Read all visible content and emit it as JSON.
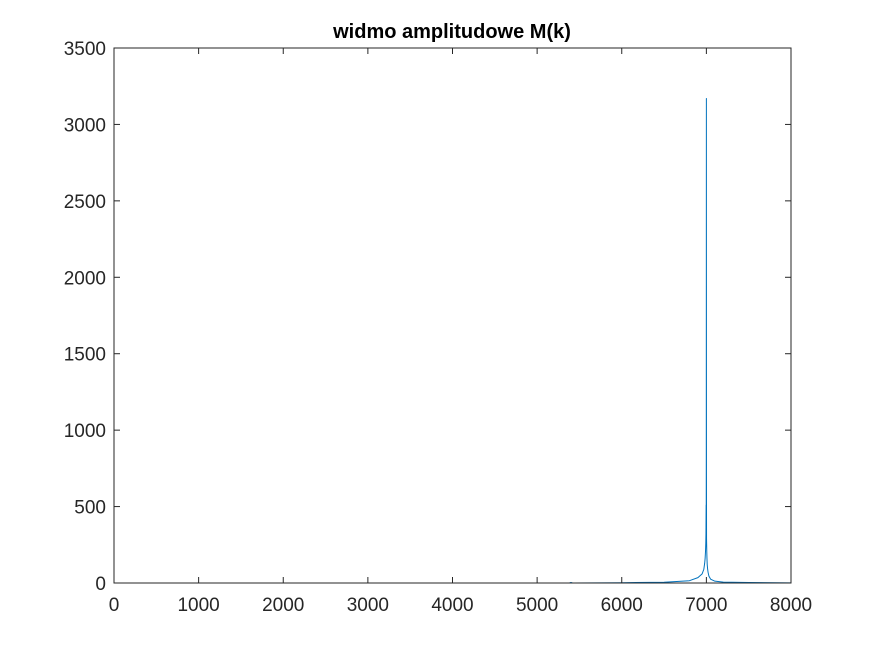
{
  "chart_data": {
    "type": "line",
    "title": "widmo amplitudowe M(k)",
    "xlabel": "",
    "ylabel": "",
    "xlim": [
      0,
      8000
    ],
    "ylim": [
      0,
      3500
    ],
    "xticks": [
      0,
      1000,
      2000,
      3000,
      4000,
      5000,
      6000,
      7000,
      8000
    ],
    "yticks": [
      0,
      500,
      1000,
      1500,
      2000,
      2500,
      3000,
      3500
    ],
    "xtick_labels": [
      "0",
      "1000",
      "2000",
      "3000",
      "4000",
      "5000",
      "6000",
      "7000",
      "8000"
    ],
    "ytick_labels": [
      "0",
      "500",
      "1000",
      "1500",
      "2000",
      "2500",
      "3000",
      "3500"
    ],
    "grid": false,
    "series": [
      {
        "color": "#0072bd",
        "x": [
          0,
          1000,
          2000,
          3000,
          4000,
          5000,
          5380,
          5400,
          5420,
          6000,
          6500,
          6800,
          6900,
          6950,
          6970,
          6980,
          6985,
          6990,
          6993,
          6995,
          6997,
          6998,
          6999,
          7000,
          7001,
          7002,
          7003,
          7005,
          7007,
          7010,
          7015,
          7020,
          7030,
          7050,
          7100,
          7200,
          7500,
          8000
        ],
        "y": [
          0,
          0,
          0,
          0,
          0,
          0,
          0,
          3,
          0,
          2,
          5,
          15,
          35,
          60,
          90,
          130,
          160,
          210,
          260,
          320,
          510,
          360,
          900,
          3170,
          700,
          290,
          260,
          200,
          160,
          120,
          90,
          70,
          45,
          25,
          12,
          6,
          3,
          1
        ]
      }
    ]
  }
}
